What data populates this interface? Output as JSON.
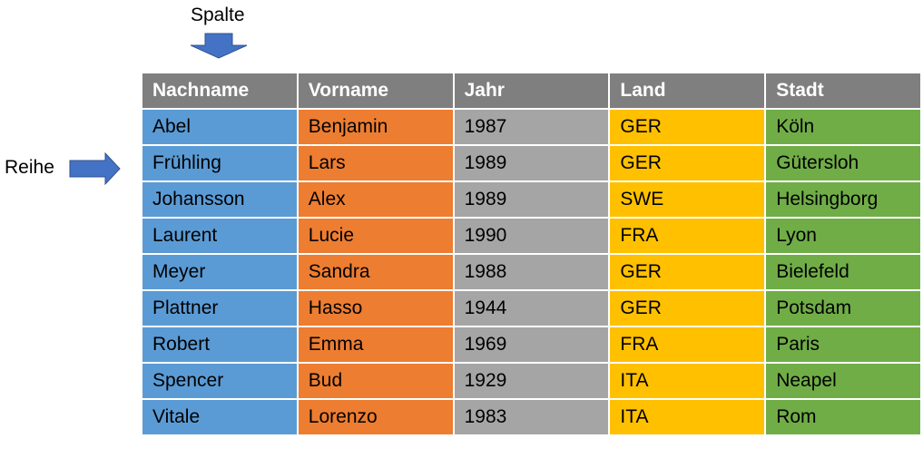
{
  "annotations": {
    "column_label": "Spalte",
    "row_label": "Reihe",
    "arrow_color": "#4472c4"
  },
  "table": {
    "headers": [
      "Nachname",
      "Vorname",
      "Jahr",
      "Land",
      "Stadt"
    ],
    "header_color": "#7f7f7f",
    "column_colors": [
      "#5b9bd5",
      "#ed7d31",
      "#a5a5a5",
      "#ffc000",
      "#70ad47"
    ],
    "rows": [
      [
        "Abel",
        "Benjamin",
        "1987",
        "GER",
        "Köln"
      ],
      [
        "Frühling",
        "Lars",
        "1989",
        "GER",
        "Gütersloh"
      ],
      [
        "Johansson",
        "Alex",
        "1989",
        "SWE",
        "Helsingborg"
      ],
      [
        "Laurent",
        "Lucie",
        "1990",
        "FRA",
        "Lyon"
      ],
      [
        "Meyer",
        "Sandra",
        "1988",
        "GER",
        "Bielefeld"
      ],
      [
        "Plattner",
        "Hasso",
        "1944",
        "GER",
        "Potsdam"
      ],
      [
        "Robert",
        "Emma",
        "1969",
        "FRA",
        "Paris"
      ],
      [
        "Spencer",
        "Bud",
        "1929",
        "ITA",
        "Neapel"
      ],
      [
        "Vitale",
        "Lorenzo",
        "1983",
        "ITA",
        "Rom"
      ]
    ]
  }
}
